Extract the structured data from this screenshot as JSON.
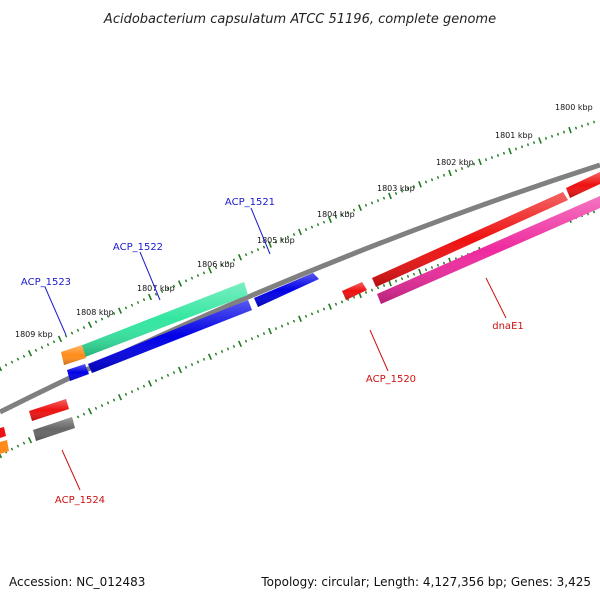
{
  "title": "Acidobacterium capsulatum ATCC 51196, complete genome",
  "footer": {
    "accession": "Accession: NC_012483",
    "summary": "Topology: circular; Length: 4,127,356 bp; Genes: 3,425"
  },
  "colors": {
    "backbone": "#808080",
    "ticks": "#1f7a1f",
    "label_blue": "#1a1acc",
    "label_red": "#cc1111"
  },
  "scale_labels": [
    "1800 kbp",
    "1801 kbp",
    "1802 kbp",
    "1803 kbp",
    "1804 kbp",
    "1805 kbp",
    "1806 kbp",
    "1807 kbp",
    "1808 kbp",
    "1809 kbp"
  ],
  "gene_labels": {
    "acp_1521": "ACP_1521",
    "acp_1522": "ACP_1522",
    "acp_1523": "ACP_1523",
    "acp_1520": "ACP_1520",
    "acp_1524": "ACP_1524",
    "dnae1": "dnaE1"
  },
  "features": {
    "acp_1521_arrow": "#0000e6",
    "acp_1522_arrow": "#33e6a0",
    "acp_1523_arrow": "#0000e6",
    "orange_block": "#ff8c1a",
    "acp_1520_arrow": "#ee1111",
    "dnae1_arrow": "#ee2a9e",
    "upper_red_arrow": "#ee1111",
    "acp_1524_arrow": "#ee1111",
    "grey_block": "#666666"
  }
}
